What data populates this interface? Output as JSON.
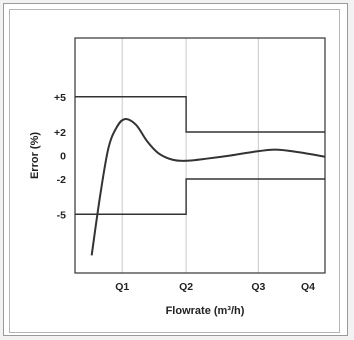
{
  "chart_data": {
    "type": "line",
    "xlabel": "Flowrate (m³/h)",
    "ylabel": "Error (%)",
    "xlim": [
      0,
      4.5
    ],
    "ylim": [
      -10,
      10
    ],
    "x_ticks": [
      {
        "label": "Q1",
        "value": 0.85
      },
      {
        "label": "Q2",
        "value": 2.0
      },
      {
        "label": "Q3",
        "value": 3.3
      },
      {
        "label": "Q4",
        "value": 4.7
      }
    ],
    "y_ticks": [
      {
        "label": "+5",
        "value": 5
      },
      {
        "label": "+2",
        "value": 2
      },
      {
        "label": "0",
        "value": 0
      },
      {
        "label": "-2",
        "value": -2
      },
      {
        "label": "-5",
        "value": -5
      }
    ],
    "grid": true,
    "series": [
      {
        "role": "error-curve",
        "color": "#333333",
        "points": [
          [
            0.3,
            -8.5
          ],
          [
            0.45,
            -3.5
          ],
          [
            0.6,
            0.6
          ],
          [
            0.75,
            2.4
          ],
          [
            0.9,
            3.1
          ],
          [
            1.1,
            2.6
          ],
          [
            1.3,
            1.2
          ],
          [
            1.5,
            0.2
          ],
          [
            1.75,
            -0.35
          ],
          [
            2.0,
            -0.45
          ],
          [
            2.4,
            -0.25
          ],
          [
            2.8,
            0.0
          ],
          [
            3.2,
            0.3
          ],
          [
            3.6,
            0.5
          ],
          [
            4.0,
            0.3
          ],
          [
            4.5,
            -0.1
          ]
        ]
      },
      {
        "role": "upper-tolerance-limit",
        "color": "#333333",
        "points": [
          [
            0,
            5
          ],
          [
            2.0,
            5
          ],
          [
            2.0,
            2
          ],
          [
            4.5,
            2
          ]
        ]
      },
      {
        "role": "lower-tolerance-limit",
        "color": "#333333",
        "points": [
          [
            0,
            -5
          ],
          [
            2.0,
            -5
          ],
          [
            2.0,
            -2
          ],
          [
            4.5,
            -2
          ]
        ]
      }
    ]
  }
}
